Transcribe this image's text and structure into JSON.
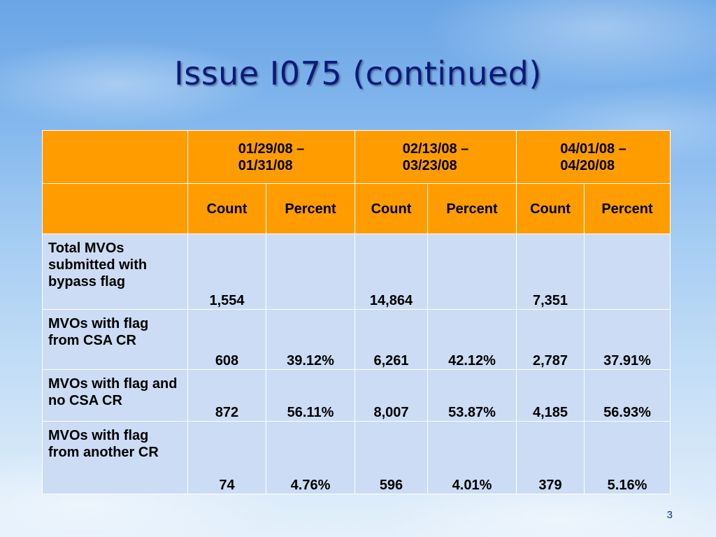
{
  "slide": {
    "title": "Issue I075 (continued)",
    "page_number": "3"
  },
  "table": {
    "date_ranges": [
      {
        "line1": "01/29/08 –",
        "line2": "01/31/08"
      },
      {
        "line1": "02/13/08 –",
        "line2": "03/23/08"
      },
      {
        "line1": "04/01/08 –",
        "line2": "04/20/08"
      }
    ],
    "sub_headers": [
      "Count",
      "Percent",
      "Count",
      "Percent",
      "Count",
      "Percent"
    ],
    "rows": [
      {
        "label": "Total MVOs submitted with bypass flag",
        "cells": [
          "1,554",
          "",
          "14,864",
          "",
          "7,351",
          ""
        ]
      },
      {
        "label": "MVOs with flag from CSA CR",
        "cells": [
          "608",
          "39.12%",
          "6,261",
          "42.12%",
          "2,787",
          "37.91%"
        ]
      },
      {
        "label": "MVOs with flag and no CSA CR",
        "cells": [
          "872",
          "56.11%",
          "8,007",
          "53.87%",
          "4,185",
          "56.93%"
        ]
      },
      {
        "label": "MVOs with flag from another CR",
        "cells": [
          "74",
          "4.76%",
          "596",
          "4.01%",
          "379",
          "5.16%"
        ]
      }
    ]
  },
  "colors": {
    "header_orange": "#ff9d00",
    "body_blue": "#ccdcf4",
    "title_navy": "#0a1a7a"
  }
}
